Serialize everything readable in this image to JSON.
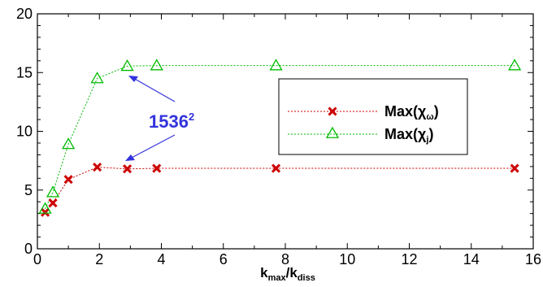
{
  "chart_data": {
    "type": "line",
    "title": "",
    "xlabel": {
      "main": "k",
      "sub1": "max",
      "slash": "/k",
      "sub2": "diss"
    },
    "ylabel": "",
    "xlim": [
      0,
      16
    ],
    "ylim": [
      0,
      20
    ],
    "x_ticks": [
      "0",
      "2",
      "4",
      "6",
      "8",
      "10",
      "12",
      "14",
      "16"
    ],
    "y_ticks": [
      "0",
      "5",
      "10",
      "15",
      "20"
    ],
    "grid": false,
    "legend_position": "center-right",
    "colors": {
      "series_omega": "#cc0000",
      "series_j": "#00bb00",
      "annotation": "#3333dd"
    },
    "series": [
      {
        "name": {
          "main": "Max(",
          "greek": "χ",
          "sub": "ω",
          "close": ")"
        },
        "marker": "x",
        "x": [
          0.25,
          0.5,
          1.0,
          1.93,
          2.9,
          3.85,
          7.7,
          15.4
        ],
        "y": [
          3.1,
          3.9,
          5.9,
          6.95,
          6.8,
          6.85,
          6.85,
          6.85
        ]
      },
      {
        "name": {
          "main": "Max(",
          "greek": "χ",
          "sub": "j",
          "close": ")"
        },
        "marker": "triangle",
        "x": [
          0.25,
          0.5,
          1.0,
          1.93,
          2.9,
          3.85,
          7.7,
          15.4
        ],
        "y": [
          3.4,
          4.8,
          8.9,
          14.5,
          15.55,
          15.6,
          15.6,
          15.6
        ]
      }
    ],
    "annotation": {
      "base": "1536",
      "sup": "2"
    }
  }
}
